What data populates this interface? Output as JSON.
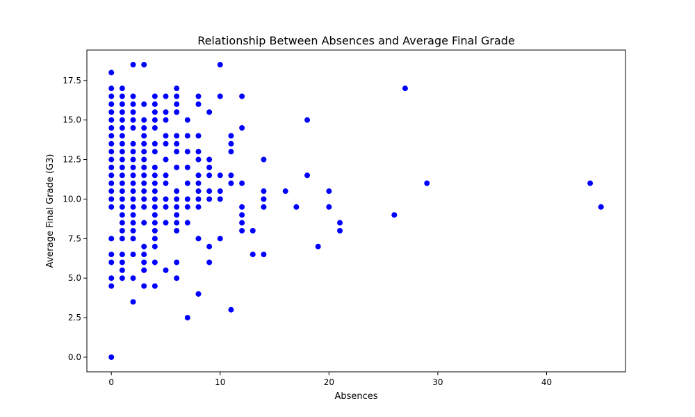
{
  "chart_data": {
    "type": "scatter",
    "title": "Relationship Between Absences and Average Final Grade",
    "xlabel": "Absences",
    "ylabel": "Average Final Grade (G3)",
    "xlim": [
      -2.25,
      47.25
    ],
    "ylim": [
      -0.925,
      19.425
    ],
    "xticks": [
      0,
      10,
      20,
      30,
      40
    ],
    "yticks": [
      0.0,
      2.5,
      5.0,
      7.5,
      10.0,
      12.5,
      15.0,
      17.5
    ],
    "xtick_labels": [
      "0",
      "10",
      "20",
      "30",
      "40"
    ],
    "ytick_labels": [
      "0.0",
      "2.5",
      "5.0",
      "7.5",
      "10.0",
      "12.5",
      "15.0",
      "17.5"
    ],
    "grid": false,
    "marker_color": "#0000ff",
    "series": [
      {
        "points": [
          [
            0,
            18
          ],
          [
            0,
            17
          ],
          [
            0,
            16.5
          ],
          [
            0,
            16
          ],
          [
            0,
            15.5
          ],
          [
            0,
            15
          ],
          [
            0,
            14.5
          ],
          [
            0,
            14
          ],
          [
            0,
            13.5
          ],
          [
            0,
            13
          ],
          [
            0,
            12.5
          ],
          [
            0,
            12
          ],
          [
            0,
            11.5
          ],
          [
            0,
            11
          ],
          [
            0,
            10.5
          ],
          [
            0,
            10
          ],
          [
            0,
            9.5
          ],
          [
            0,
            7.5
          ],
          [
            0,
            6.5
          ],
          [
            0,
            6
          ],
          [
            0,
            5
          ],
          [
            0,
            4.5
          ],
          [
            0,
            0
          ],
          [
            1,
            17
          ],
          [
            1,
            16.5
          ],
          [
            1,
            16
          ],
          [
            1,
            15.5
          ],
          [
            1,
            15
          ],
          [
            1,
            14.5
          ],
          [
            1,
            14
          ],
          [
            1,
            13.5
          ],
          [
            1,
            13
          ],
          [
            1,
            12.5
          ],
          [
            1,
            12
          ],
          [
            1,
            11.5
          ],
          [
            1,
            11
          ],
          [
            1,
            10.5
          ],
          [
            1,
            10
          ],
          [
            1,
            9.5
          ],
          [
            1,
            9
          ],
          [
            1,
            8.5
          ],
          [
            1,
            8
          ],
          [
            1,
            7.5
          ],
          [
            1,
            6.5
          ],
          [
            1,
            6
          ],
          [
            1,
            5.5
          ],
          [
            1,
            5
          ],
          [
            2,
            18.5
          ],
          [
            2,
            16.5
          ],
          [
            2,
            16
          ],
          [
            2,
            15.5
          ],
          [
            2,
            15
          ],
          [
            2,
            14.5
          ],
          [
            2,
            13.5
          ],
          [
            2,
            13
          ],
          [
            2,
            12.5
          ],
          [
            2,
            12
          ],
          [
            2,
            11.5
          ],
          [
            2,
            11
          ],
          [
            2,
            10.5
          ],
          [
            2,
            10
          ],
          [
            2,
            9.5
          ],
          [
            2,
            9
          ],
          [
            2,
            8.5
          ],
          [
            2,
            8
          ],
          [
            2,
            7.5
          ],
          [
            2,
            6.5
          ],
          [
            2,
            5
          ],
          [
            2,
            3.5
          ],
          [
            3,
            18.5
          ],
          [
            3,
            16
          ],
          [
            3,
            15
          ],
          [
            3,
            14.5
          ],
          [
            3,
            14
          ],
          [
            3,
            13.5
          ],
          [
            3,
            13
          ],
          [
            3,
            12.5
          ],
          [
            3,
            12
          ],
          [
            3,
            11.5
          ],
          [
            3,
            11
          ],
          [
            3,
            10.5
          ],
          [
            3,
            10
          ],
          [
            3,
            9.5
          ],
          [
            3,
            8.5
          ],
          [
            3,
            7
          ],
          [
            3,
            6.5
          ],
          [
            3,
            6
          ],
          [
            3,
            5.5
          ],
          [
            3,
            4.5
          ],
          [
            4,
            16.5
          ],
          [
            4,
            16
          ],
          [
            4,
            15.5
          ],
          [
            4,
            15
          ],
          [
            4,
            14.5
          ],
          [
            4,
            13.5
          ],
          [
            4,
            13
          ],
          [
            4,
            12
          ],
          [
            4,
            11.5
          ],
          [
            4,
            11
          ],
          [
            4,
            10.5
          ],
          [
            4,
            10
          ],
          [
            4,
            9.5
          ],
          [
            4,
            9
          ],
          [
            4,
            8.5
          ],
          [
            4,
            8
          ],
          [
            4,
            7.5
          ],
          [
            4,
            7
          ],
          [
            4,
            6
          ],
          [
            4,
            4.5
          ],
          [
            5,
            16.5
          ],
          [
            5,
            15.5
          ],
          [
            5,
            15
          ],
          [
            5,
            14
          ],
          [
            5,
            13.5
          ],
          [
            5,
            12.5
          ],
          [
            5,
            11.5
          ],
          [
            5,
            11
          ],
          [
            5,
            10
          ],
          [
            5,
            9.5
          ],
          [
            5,
            8.5
          ],
          [
            5,
            5.5
          ],
          [
            6,
            17
          ],
          [
            6,
            16.5
          ],
          [
            6,
            16
          ],
          [
            6,
            15.5
          ],
          [
            6,
            14
          ],
          [
            6,
            13.5
          ],
          [
            6,
            13
          ],
          [
            6,
            12
          ],
          [
            6,
            10.5
          ],
          [
            6,
            10
          ],
          [
            6,
            9.5
          ],
          [
            6,
            9
          ],
          [
            6,
            8.5
          ],
          [
            6,
            8
          ],
          [
            6,
            6
          ],
          [
            6,
            5
          ],
          [
            7,
            15
          ],
          [
            7,
            14
          ],
          [
            7,
            13
          ],
          [
            7,
            12
          ],
          [
            7,
            11
          ],
          [
            7,
            10
          ],
          [
            7,
            9.5
          ],
          [
            7,
            8.5
          ],
          [
            7,
            2.5
          ],
          [
            8,
            16.5
          ],
          [
            8,
            16
          ],
          [
            8,
            14
          ],
          [
            8,
            13
          ],
          [
            8,
            12.5
          ],
          [
            8,
            11.5
          ],
          [
            8,
            11
          ],
          [
            8,
            10.5
          ],
          [
            8,
            10
          ],
          [
            8,
            9.5
          ],
          [
            8,
            7.5
          ],
          [
            8,
            4
          ],
          [
            9,
            15.5
          ],
          [
            9,
            12.5
          ],
          [
            9,
            12
          ],
          [
            9,
            11.5
          ],
          [
            9,
            10.5
          ],
          [
            9,
            10
          ],
          [
            9,
            7
          ],
          [
            9,
            6
          ],
          [
            10,
            18.5
          ],
          [
            10,
            16.5
          ],
          [
            10,
            11.5
          ],
          [
            10,
            10.5
          ],
          [
            10,
            10
          ],
          [
            10,
            7.5
          ],
          [
            11,
            14
          ],
          [
            11,
            13.5
          ],
          [
            11,
            13
          ],
          [
            11,
            11.5
          ],
          [
            11,
            11
          ],
          [
            11,
            3
          ],
          [
            12,
            16.5
          ],
          [
            12,
            14.5
          ],
          [
            12,
            11
          ],
          [
            12,
            9.5
          ],
          [
            12,
            9
          ],
          [
            12,
            8.5
          ],
          [
            12,
            8
          ],
          [
            13,
            8
          ],
          [
            13,
            6.5
          ],
          [
            14,
            12.5
          ],
          [
            14,
            10.5
          ],
          [
            14,
            10
          ],
          [
            14,
            9.5
          ],
          [
            14,
            6.5
          ],
          [
            16,
            10.5
          ],
          [
            17,
            9.5
          ],
          [
            18,
            15
          ],
          [
            18,
            11.5
          ],
          [
            19,
            7
          ],
          [
            20,
            10.5
          ],
          [
            20,
            9.5
          ],
          [
            21,
            8.5
          ],
          [
            21,
            8
          ],
          [
            26,
            9
          ],
          [
            27,
            17
          ],
          [
            29,
            11
          ],
          [
            44,
            11
          ],
          [
            45,
            9.5
          ]
        ]
      }
    ]
  }
}
